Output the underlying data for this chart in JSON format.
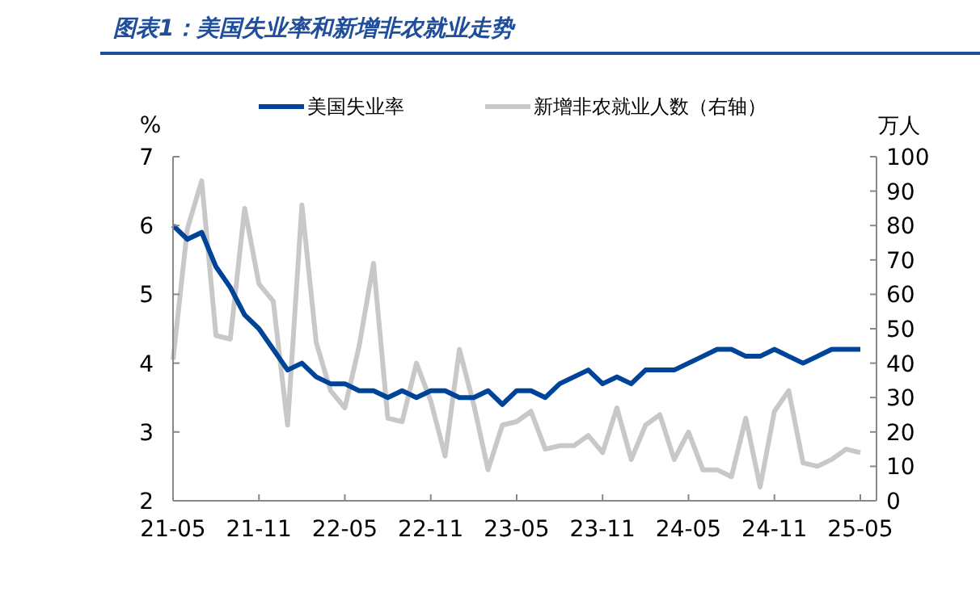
{
  "chart_data": {
    "type": "line",
    "title": "图表1：美国失业率和新增非农就业走势",
    "ylabel": "%",
    "y2label": "万人",
    "categories": [
      "21-05",
      null,
      null,
      null,
      null,
      null,
      "21-11",
      null,
      null,
      null,
      null,
      null,
      "22-05",
      null,
      null,
      null,
      null,
      null,
      "22-11",
      null,
      null,
      null,
      null,
      null,
      "23-05",
      null,
      null,
      null,
      null,
      null,
      "23-11",
      null,
      null,
      null,
      null,
      null,
      "24-05",
      null,
      null,
      null,
      null,
      null,
      "24-11",
      null,
      null,
      null,
      null,
      null,
      "25-05"
    ],
    "series": [
      {
        "name": "美国失业率",
        "color": "#00449a",
        "values": [
          6.0,
          5.8,
          5.9,
          5.4,
          5.1,
          4.7,
          4.5,
          4.2,
          3.9,
          4.0,
          3.8,
          3.7,
          3.7,
          3.6,
          3.6,
          3.5,
          3.6,
          3.5,
          3.6,
          3.6,
          3.5,
          3.5,
          3.6,
          3.4,
          3.6,
          3.6,
          3.5,
          3.7,
          3.8,
          3.9,
          3.7,
          3.8,
          3.7,
          3.9,
          3.9,
          3.9,
          4.0,
          4.1,
          4.2,
          4.2,
          4.1,
          4.1,
          4.2,
          4.1,
          4.0,
          4.1,
          4.2,
          4.2,
          4.2
        ]
      },
      {
        "name": "新增非农就业人数（右轴）",
        "color": "#c8c8c8",
        "axis": "y2",
        "values": [
          41,
          79,
          93,
          48,
          47,
          85,
          63,
          58,
          22,
          86,
          46,
          32,
          27,
          45,
          69,
          24,
          23,
          40,
          29,
          13,
          44,
          28,
          9,
          22,
          23,
          26,
          15,
          16,
          16,
          19,
          14,
          27,
          12,
          22,
          25,
          12,
          20,
          9,
          9,
          7,
          24,
          4,
          26,
          32,
          11,
          10,
          12,
          15,
          14
        ]
      }
    ],
    "ylim": [
      2,
      7
    ],
    "yticks": [
      2,
      3,
      4,
      5,
      6,
      7
    ],
    "y2lim": [
      0,
      100
    ],
    "y2ticks": [
      0,
      10,
      20,
      30,
      40,
      50,
      60,
      70,
      80,
      90,
      100
    ],
    "grid": false,
    "legend": "top",
    "marker": "none",
    "line_style": "solid"
  }
}
